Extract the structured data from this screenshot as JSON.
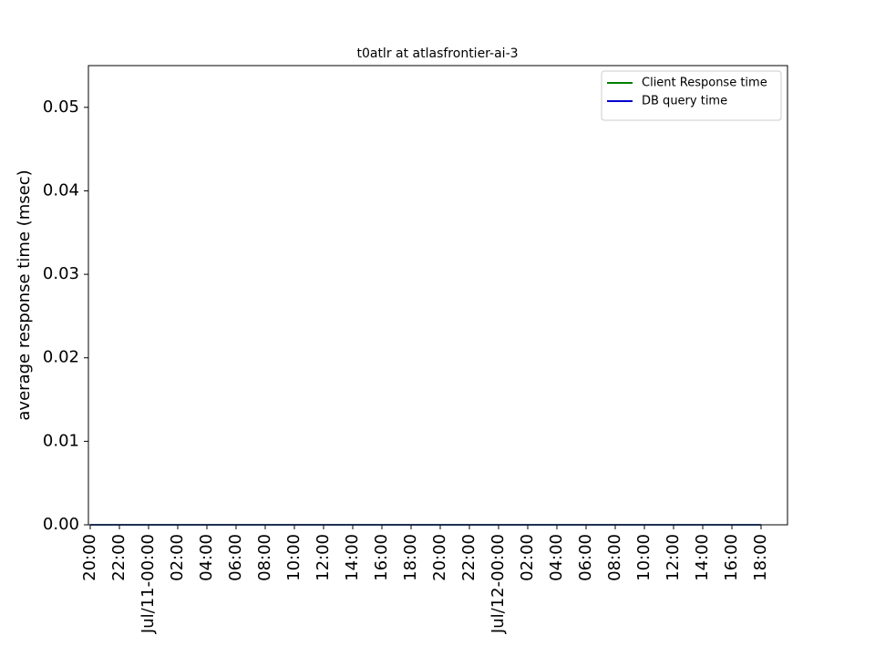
{
  "chart_data": {
    "type": "line",
    "title": "t0atlr at atlasfrontier-ai-3",
    "y_label": "average response time (msec)",
    "categories": [
      "20:00",
      "22:00",
      "Jul/11-00:00",
      "02:00",
      "04:00",
      "06:00",
      "08:00",
      "10:00",
      "12:00",
      "14:00",
      "16:00",
      "18:00",
      "20:00",
      "22:00",
      "Jul/12-00:00",
      "02:00",
      "04:00",
      "06:00",
      "08:00",
      "10:00",
      "12:00",
      "14:00",
      "16:00",
      "18:00"
    ],
    "series": [
      {
        "name": "Client Response time",
        "color": "#008000",
        "values": [
          0,
          0,
          0,
          0,
          0,
          0,
          0,
          0,
          0,
          0,
          0,
          0,
          0,
          0,
          0,
          0,
          0,
          0,
          0,
          0,
          0,
          0,
          0,
          0
        ]
      },
      {
        "name": "DB query time",
        "color": "#0000cd",
        "values": [
          0,
          0,
          0,
          0,
          0,
          0,
          0,
          0,
          0,
          0,
          0,
          0,
          0,
          0,
          0,
          0,
          0,
          0,
          0,
          0,
          0,
          0,
          0,
          0
        ]
      }
    ],
    "ylim": [
      0,
      0.055
    ],
    "yticks": [
      {
        "value": 0,
        "label": "0.00"
      },
      0.01,
      0.02,
      0.03,
      0.04,
      0.05
    ],
    "legend": "upper right"
  }
}
